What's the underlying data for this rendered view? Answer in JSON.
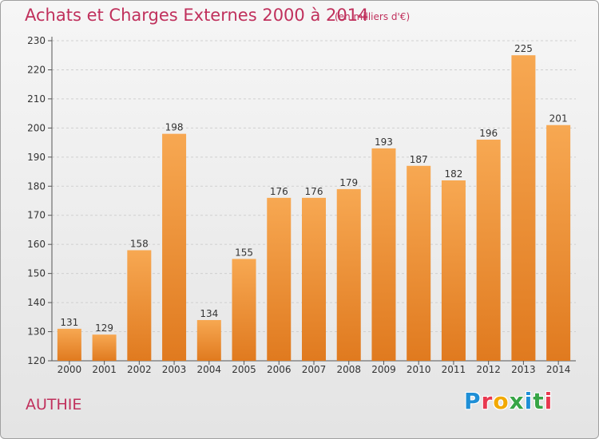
{
  "header": {
    "title": "Achats et Charges Externes 2000 à 2014",
    "unit": "(en milliers d'€)"
  },
  "footer": {
    "commune": "AUTHIE",
    "logo_text": "Proxiti"
  },
  "colors": {
    "accent_text": "#c0305c",
    "bar_top": "#f7a852",
    "bar_bottom": "#e07a1f",
    "logo_letters": [
      "#1f8fd6",
      "#e8384f",
      "#f2a900",
      "#37a546",
      "#1f8fd6",
      "#37a546",
      "#e8384f"
    ]
  },
  "chart_data": {
    "type": "bar",
    "title": "Achats et Charges Externes 2000 à 2014",
    "subtitle": "(en milliers d'€)",
    "xlabel": "",
    "ylabel": "",
    "categories": [
      "2000",
      "2001",
      "2002",
      "2003",
      "2004",
      "2005",
      "2006",
      "2007",
      "2008",
      "2009",
      "2010",
      "2011",
      "2012",
      "2013",
      "2014"
    ],
    "values": [
      131,
      129,
      158,
      198,
      134,
      155,
      176,
      176,
      179,
      193,
      187,
      182,
      196,
      225,
      201
    ],
    "ylim": [
      120,
      230
    ],
    "yticks": [
      120,
      130,
      140,
      150,
      160,
      170,
      180,
      190,
      200,
      210,
      220,
      230
    ],
    "grid": "horizontal dashed",
    "data_labels": true
  }
}
